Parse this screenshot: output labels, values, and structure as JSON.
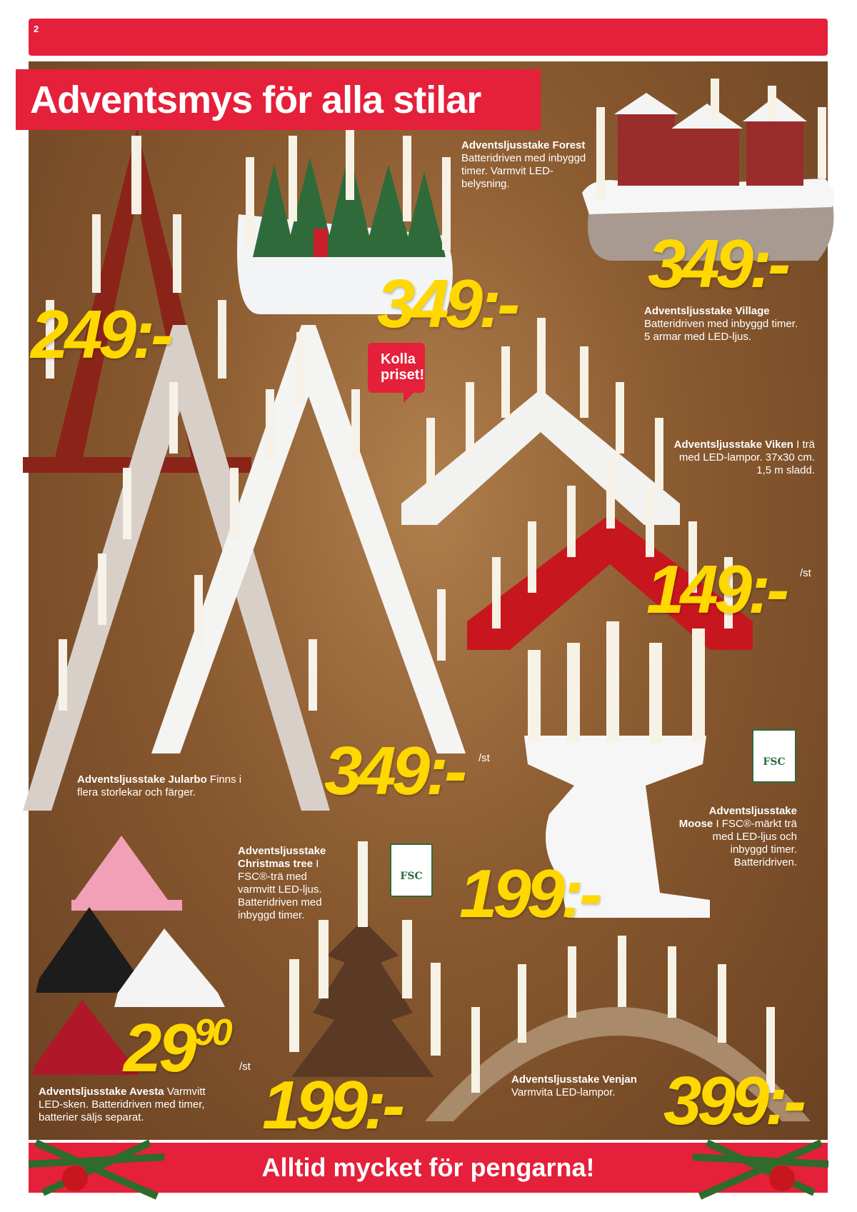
{
  "page_number": "2",
  "title": "Adventsmys för alla stilar",
  "bubble": {
    "line1": "Kolla",
    "line2": "priset!"
  },
  "products": {
    "forest": {
      "name": "Adventsljusstake Forest",
      "desc": "Batteridriven med inbyggd timer. Varmvit LED-belysning.",
      "price": "349:-"
    },
    "village": {
      "name": "Adventsljusstake Village",
      "desc": "Batteridriven med inbyggd timer. 5 armar med LED-ljus.",
      "price": "349:-"
    },
    "red_tall": {
      "price": "249:-"
    },
    "viken": {
      "name": "Adventsljusstake Viken",
      "desc": "I trä med LED-lampor. 37x30 cm. 1,5 m sladd.",
      "price": "149:-",
      "unit": "/st"
    },
    "jularbo": {
      "name": "Adventsljusstake Jularbo",
      "desc": "Finns i flera storlekar och färger.",
      "price": "349:-",
      "unit": "/st"
    },
    "moose": {
      "name": "Adventsljusstake Moose",
      "desc": "I FSC®-märkt trä med LED-ljus och inbyggd timer. Batteridriven.",
      "price": "199:-"
    },
    "christmas_tree": {
      "name": "Adventsljusstake Christmas tree",
      "desc": "I FSC®-trä med varmvitt LED-ljus. Batteridriven med inbyggd timer.",
      "price": "199:-"
    },
    "avesta": {
      "name": "Adventsljusstake Avesta",
      "desc": "Varmvitt LED-sken. Batteridriven med timer, batterier säljs separat.",
      "price_main": "29",
      "price_dec": "90",
      "unit": "/st"
    },
    "venjan": {
      "name": "Adventsljusstake Venjan",
      "desc": "Varmvita LED-lampor.",
      "price": "399:-"
    }
  },
  "fsc_label": "FSC",
  "footer": "Alltid mycket för pengarna!",
  "colors": {
    "brand_red": "#e5203a",
    "price_yellow": "#ffd800",
    "background_brown": "#8a5a30"
  }
}
